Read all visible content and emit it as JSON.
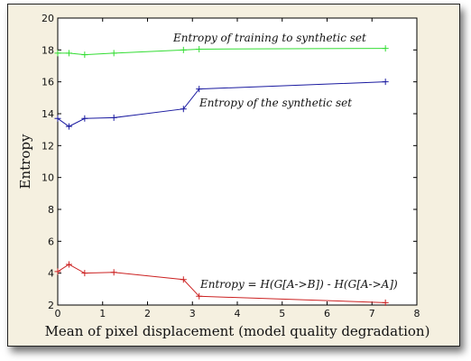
{
  "chart_data": {
    "type": "line",
    "xlabel": "Mean of pixel displacement (model quality degradation)",
    "ylabel": "Entropy",
    "xlim": [
      0,
      8
    ],
    "ylim": [
      2,
      20
    ],
    "x_ticks": [
      "0",
      "1",
      "2",
      "3",
      "4",
      "5",
      "6",
      "7",
      "8"
    ],
    "y_ticks": [
      "2",
      "4",
      "6",
      "8",
      "10",
      "12",
      "14",
      "16",
      "18",
      "20"
    ],
    "grid": false,
    "series": [
      {
        "label": "Entropy of training to synthetic set",
        "color": "#33dd33",
        "x": [
          0,
          0.25,
          0.6,
          1.25,
          2.8,
          3.15,
          7.3
        ],
        "y": [
          17.8,
          17.8,
          17.7,
          17.8,
          18.0,
          18.05,
          18.1
        ]
      },
      {
        "label": "Entropy of the synthetic set",
        "color": "#1a1aa0",
        "x": [
          0,
          0.25,
          0.6,
          1.25,
          2.8,
          3.15,
          7.3
        ],
        "y": [
          13.7,
          13.2,
          13.7,
          13.75,
          14.3,
          15.55,
          16.0
        ]
      },
      {
        "label": "Entropy = H(G[A->B]) - H(G[A->A])",
        "color": "#cc2222",
        "x": [
          0,
          0.25,
          0.6,
          1.25,
          2.8,
          3.15,
          7.3
        ],
        "y": [
          4.1,
          4.55,
          4.0,
          4.05,
          3.6,
          2.55,
          2.15
        ]
      }
    ]
  }
}
